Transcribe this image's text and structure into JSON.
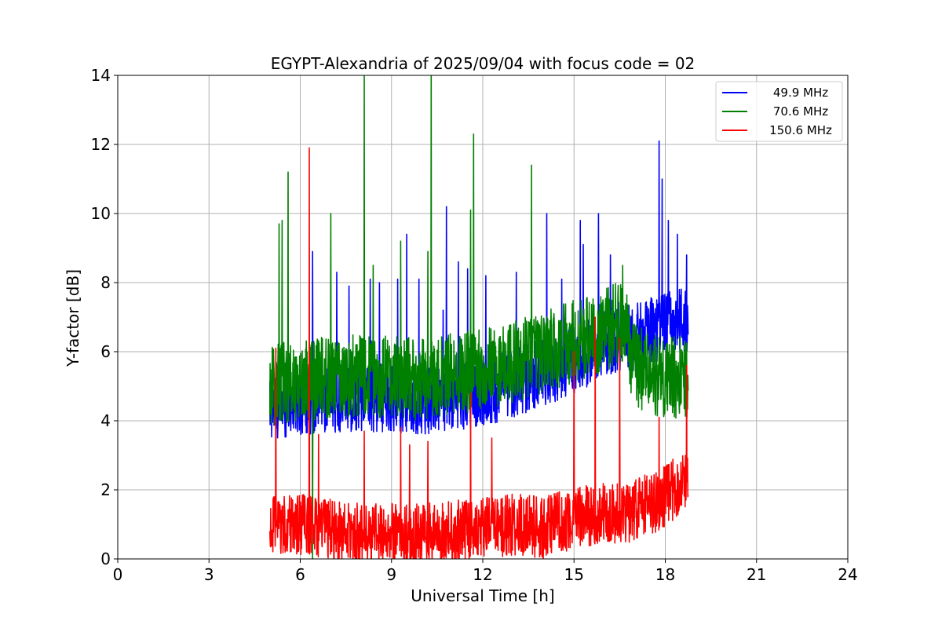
{
  "chart_data": {
    "type": "line",
    "title": "EGYPT-Alexandria of 2025/09/04 with focus code = 02",
    "xlabel": "Universal Time [h]",
    "ylabel": "Y-factor [dB]",
    "xlim": [
      0,
      24
    ],
    "ylim": [
      0,
      14
    ],
    "xticks": [
      0,
      3,
      6,
      9,
      12,
      15,
      18,
      21,
      24
    ],
    "yticks": [
      0,
      2,
      4,
      6,
      8,
      10,
      12,
      14
    ],
    "grid": true,
    "legend_position": "top-right",
    "x_range_of_data": [
      5.0,
      18.75
    ],
    "series": [
      {
        "name": "49.9 MHz",
        "color": "#0000ff",
        "baseline": [
          [
            5.0,
            4.4
          ],
          [
            6.0,
            4.6
          ],
          [
            8.0,
            4.7
          ],
          [
            10.0,
            4.6
          ],
          [
            12.0,
            4.8
          ],
          [
            13.0,
            5.1
          ],
          [
            14.0,
            5.4
          ],
          [
            15.0,
            5.8
          ],
          [
            16.0,
            6.2
          ],
          [
            16.6,
            6.5
          ],
          [
            17.0,
            6.4
          ],
          [
            18.0,
            6.8
          ],
          [
            18.75,
            6.9
          ]
        ],
        "spread": 1.0,
        "spikes": [
          [
            5.3,
            7.1
          ],
          [
            5.6,
            7.2
          ],
          [
            6.4,
            8.9
          ],
          [
            7.2,
            8.3
          ],
          [
            7.6,
            7.9
          ],
          [
            8.3,
            8.1
          ],
          [
            8.6,
            8.0
          ],
          [
            9.2,
            8.1
          ],
          [
            9.5,
            9.4
          ],
          [
            9.9,
            8.1
          ],
          [
            10.7,
            7.2
          ],
          [
            10.8,
            10.2
          ],
          [
            11.2,
            8.6
          ],
          [
            11.5,
            8.4
          ],
          [
            12.1,
            8.2
          ],
          [
            13.1,
            8.3
          ],
          [
            14.1,
            10.0
          ],
          [
            14.6,
            8.1
          ],
          [
            15.2,
            9.8
          ],
          [
            15.3,
            9.1
          ],
          [
            15.8,
            10.0
          ],
          [
            16.2,
            8.8
          ],
          [
            17.8,
            12.1
          ],
          [
            17.9,
            11.0
          ],
          [
            18.1,
            9.8
          ],
          [
            18.4,
            9.4
          ],
          [
            18.7,
            8.8
          ]
        ]
      },
      {
        "name": "70.6 MHz",
        "color": "#008000",
        "baseline": [
          [
            5.0,
            5.0
          ],
          [
            6.0,
            5.2
          ],
          [
            8.0,
            5.3
          ],
          [
            10.0,
            5.2
          ],
          [
            12.0,
            5.5
          ],
          [
            13.0,
            5.7
          ],
          [
            14.0,
            6.0
          ],
          [
            15.0,
            6.3
          ],
          [
            16.0,
            6.6
          ],
          [
            16.6,
            6.9
          ],
          [
            17.0,
            5.6
          ],
          [
            18.0,
            5.2
          ],
          [
            18.75,
            5.3
          ]
        ],
        "spread": 1.2,
        "spikes": [
          [
            5.3,
            9.7
          ],
          [
            5.4,
            9.8
          ],
          [
            5.6,
            11.2
          ],
          [
            6.4,
            0.0
          ],
          [
            7.0,
            10.0
          ],
          [
            8.1,
            14.0
          ],
          [
            8.4,
            8.5
          ],
          [
            9.3,
            9.2
          ],
          [
            10.3,
            14.0
          ],
          [
            10.2,
            8.9
          ],
          [
            11.6,
            10.1
          ],
          [
            11.7,
            12.3
          ],
          [
            13.6,
            11.4
          ],
          [
            16.6,
            8.5
          ]
        ]
      },
      {
        "name": "150.6 MHz",
        "color": "#ff0000",
        "baseline": [
          [
            5.0,
            0.9
          ],
          [
            6.0,
            1.0
          ],
          [
            8.0,
            0.7
          ],
          [
            10.0,
            0.7
          ],
          [
            12.0,
            0.9
          ],
          [
            13.0,
            1.0
          ],
          [
            14.0,
            0.9
          ],
          [
            15.0,
            1.2
          ],
          [
            16.0,
            1.3
          ],
          [
            17.0,
            1.4
          ],
          [
            18.0,
            1.8
          ],
          [
            18.75,
            2.4
          ]
        ],
        "spread": 0.9,
        "spikes": [
          [
            5.2,
            6.1
          ],
          [
            6.3,
            11.9
          ],
          [
            6.6,
            3.6
          ],
          [
            8.1,
            3.7
          ],
          [
            9.3,
            3.8
          ],
          [
            9.6,
            3.3
          ],
          [
            10.2,
            3.4
          ],
          [
            11.6,
            4.8
          ],
          [
            12.3,
            3.5
          ],
          [
            15.0,
            6.0
          ],
          [
            15.7,
            7.0
          ],
          [
            16.5,
            6.4
          ],
          [
            17.8,
            4.1
          ],
          [
            18.7,
            5.6
          ]
        ]
      }
    ]
  }
}
